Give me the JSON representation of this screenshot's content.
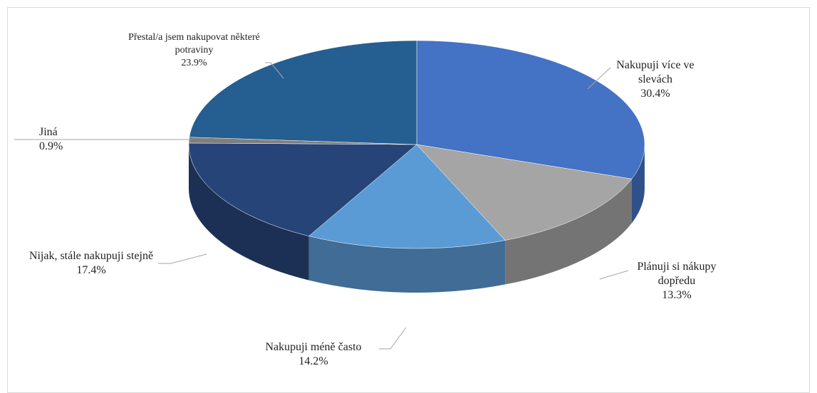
{
  "chart_data": {
    "type": "pie",
    "categories": [
      "Nakupuji více ve slevách",
      "Plánuji si nákupy dopředu",
      "Nakupuji méně často",
      "Nijak, stále nakupuji stejně",
      "Jiná",
      "Přestal/a jsem nakupovat některé potraviny"
    ],
    "values": [
      30.4,
      13.3,
      14.2,
      17.4,
      0.9,
      23.9
    ],
    "value_labels": [
      "30.4%",
      "13.3%",
      "14.2%",
      "17.4%",
      "0.9%",
      "23.9%"
    ],
    "colors": [
      "#4472c4",
      "#a5a5a5",
      "#5b9bd5",
      "#264478",
      "#7f7f7f",
      "#255e91"
    ]
  }
}
